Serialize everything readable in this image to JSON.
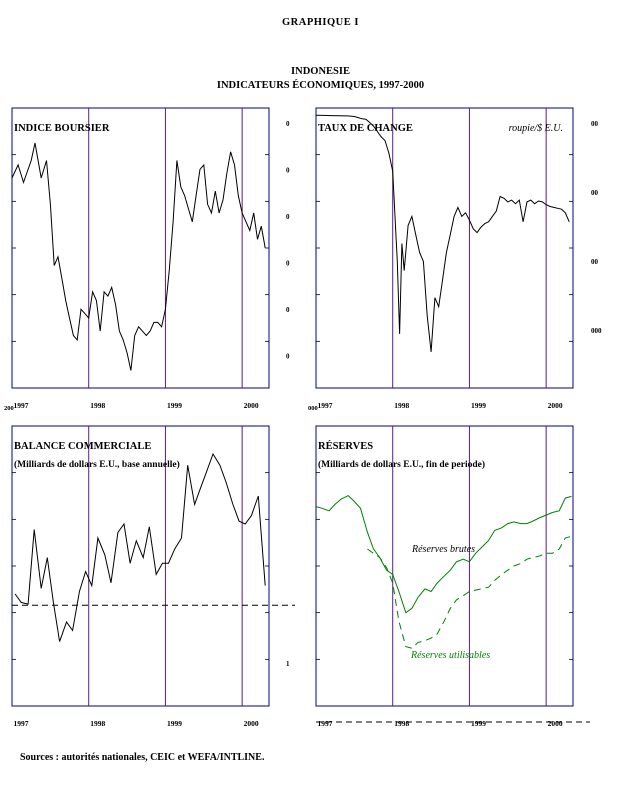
{
  "figure_label": "GRAPHIQUE I",
  "country": "INDONESIE",
  "subtitle": "INDICATEURS ÉCONOMIQUES, 1997-2000",
  "sources": "Sources : autorités nationales, CEIC et WEFA/INTLINE.",
  "colors": {
    "series": "#000000",
    "gross": "#008000",
    "usable": "#008000",
    "year_marker": "#5a1a82",
    "frame": "#00008b"
  },
  "chart_data": [
    {
      "id": "stock",
      "type": "line",
      "title": "INDICE BOURSIER",
      "subtitle": "",
      "unit_note": "",
      "x_tick_labels": [
        "1997",
        "1998",
        "1999",
        "2000"
      ],
      "year_markers_at": [
        1998.0,
        1999.0,
        2000.0
      ],
      "xlim": [
        1997.0,
        2000.35
      ],
      "right_tick_labels": [
        "0",
        "0",
        "0",
        "0",
        "0",
        "0"
      ],
      "left_corner_label": "200",
      "grid": false,
      "series": [
        {
          "x": [
            1997.0,
            1997.08,
            1997.15,
            1997.25,
            1997.3,
            1997.38,
            1997.45,
            1997.5,
            1997.55,
            1997.6,
            1997.65,
            1997.7,
            1997.75,
            1997.8,
            1997.85,
            1997.9,
            1997.95,
            1998.0,
            1998.05,
            1998.1,
            1998.15,
            1998.2,
            1998.25,
            1998.3,
            1998.35,
            1998.4,
            1998.45,
            1998.5,
            1998.55,
            1998.6,
            1998.65,
            1998.7,
            1998.75,
            1998.8,
            1998.85,
            1998.9,
            1998.95,
            1999.0,
            1999.05,
            1999.1,
            1999.15,
            1999.2,
            1999.25,
            1999.3,
            1999.35,
            1999.4,
            1999.45,
            1999.5,
            1999.55,
            1999.6,
            1999.65,
            1999.7,
            1999.75,
            1999.8,
            1999.85,
            1999.9,
            1999.95,
            2000.0,
            2000.05,
            2000.1,
            2000.15,
            2000.2,
            2000.25,
            2000.3
          ],
          "y": [
            660,
            690,
            650,
            700,
            740,
            660,
            700,
            600,
            460,
            480,
            430,
            380,
            340,
            300,
            290,
            360,
            350,
            340,
            400,
            380,
            310,
            400,
            390,
            410,
            370,
            310,
            290,
            260,
            220,
            300,
            320,
            310,
            300,
            310,
            330,
            330,
            320,
            360,
            450,
            560,
            700,
            640,
            620,
            590,
            560,
            620,
            680,
            690,
            600,
            580,
            630,
            580,
            610,
            670,
            720,
            690,
            620,
            580,
            560,
            540,
            580,
            520,
            550,
            500
          ]
        }
      ]
    },
    {
      "id": "fx",
      "type": "line",
      "title": "TAUX DE CHANGE",
      "subtitle": "",
      "unit_note": "roupie/$ E.U.",
      "x_tick_labels": [
        "1997",
        "1998",
        "1999",
        "2000"
      ],
      "year_markers_at": [
        1998.0,
        1999.0,
        2000.0
      ],
      "xlim": [
        1997.0,
        2000.35
      ],
      "right_tick_labels": [
        "00",
        "00",
        "00",
        "000"
      ],
      "left_corner_label": "000",
      "grid": false,
      "series": [
        {
          "x": [
            1997.0,
            1997.1,
            1997.2,
            1997.3,
            1997.4,
            1997.45,
            1997.5,
            1997.55,
            1997.6,
            1997.65,
            1997.7,
            1997.75,
            1997.8,
            1997.85,
            1997.9,
            1997.95,
            1998.0,
            1998.03,
            1998.06,
            1998.09,
            1998.12,
            1998.15,
            1998.2,
            1998.25,
            1998.3,
            1998.35,
            1998.4,
            1998.45,
            1998.5,
            1998.55,
            1998.6,
            1998.65,
            1998.7,
            1998.75,
            1998.8,
            1998.85,
            1998.9,
            1998.95,
            1999.0,
            1999.05,
            1999.1,
            1999.15,
            1999.2,
            1999.25,
            1999.3,
            1999.35,
            1999.4,
            1999.45,
            1999.5,
            1999.55,
            1999.6,
            1999.65,
            1999.7,
            1999.75,
            1999.8,
            1999.85,
            1999.9,
            1999.95,
            2000.0,
            2000.05,
            2000.1,
            2000.15,
            2000.2,
            2000.25,
            2000.3
          ],
          "y": [
            2400,
            2410,
            2420,
            2430,
            2440,
            2450,
            2470,
            2530,
            2600,
            2620,
            2800,
            3000,
            3300,
            3600,
            3800,
            4500,
            5500,
            8000,
            10500,
            14500,
            9500,
            11000,
            8500,
            8000,
            9000,
            10000,
            10500,
            13500,
            15500,
            12500,
            13000,
            11500,
            10000,
            9000,
            8000,
            7500,
            8000,
            7800,
            8200,
            8700,
            8900,
            8600,
            8400,
            8300,
            8000,
            7700,
            6900,
            7000,
            7200,
            7100,
            7300,
            7100,
            8300,
            7200,
            7100,
            7300,
            7150,
            7200,
            7350,
            7450,
            7500,
            7550,
            7600,
            7800,
            8300
          ]
        }
      ]
    },
    {
      "id": "trade",
      "type": "line",
      "title": "BALANCE COMMERCIALE",
      "subtitle": "(Milliards de dollars E.U., base annuelle)",
      "unit_note": "",
      "x_tick_labels": [
        "1997",
        "1998",
        "1999",
        "2000"
      ],
      "year_markers_at": [
        1998.0,
        1999.0,
        2000.0
      ],
      "xlim": [
        1997.0,
        2000.35
      ],
      "right_tick_labels": [
        "1"
      ],
      "left_corner_label": "",
      "grid": false,
      "zero_line": true,
      "series": [
        {
          "x": [
            1997.04,
            1997.12,
            1997.21,
            1997.29,
            1997.38,
            1997.46,
            1997.54,
            1997.62,
            1997.71,
            1997.79,
            1997.88,
            1997.96,
            1998.04,
            1998.12,
            1998.21,
            1998.29,
            1998.38,
            1998.46,
            1998.54,
            1998.62,
            1998.71,
            1998.79,
            1998.88,
            1998.96,
            1999.04,
            1999.12,
            1999.21,
            1999.29,
            1999.38,
            1999.46,
            1999.54,
            1999.62,
            1999.71,
            1999.79,
            1999.88,
            1999.96,
            2000.04,
            2000.12,
            2000.21,
            2000.3
          ],
          "y": [
            2.0,
            0.5,
            0.2,
            13.5,
            3.0,
            8.5,
            0.5,
            -6.5,
            -3.0,
            -4.5,
            2.5,
            6.0,
            3.5,
            12.0,
            9.0,
            4.0,
            13.0,
            14.5,
            7.5,
            11.5,
            8.5,
            14.0,
            5.5,
            7.5,
            7.5,
            10.0,
            12.0,
            25.0,
            18.0,
            21.0,
            24.0,
            27.0,
            25.0,
            22.0,
            18.0,
            15.0,
            14.5,
            16.0,
            19.5,
            3.5
          ]
        }
      ]
    },
    {
      "id": "reserves",
      "type": "line",
      "title": "RÉSERVES",
      "subtitle": "(Milliards de dollars E.U., fin de periode)",
      "unit_note": "",
      "x_tick_labels": [
        "1997",
        "1998",
        "1999",
        "2000"
      ],
      "year_markers_at": [
        1998.0,
        1999.0,
        2000.0
      ],
      "xlim": [
        1997.0,
        2000.35
      ],
      "right_tick_labels": [],
      "left_corner_label": "",
      "grid": false,
      "series": [
        {
          "name": "Réserves brutes",
          "x": [
            1997.0,
            1997.08,
            1997.17,
            1997.25,
            1997.33,
            1997.42,
            1997.5,
            1997.58,
            1997.67,
            1997.75,
            1997.83,
            1997.92,
            1998.0,
            1998.08,
            1998.17,
            1998.25,
            1998.33,
            1998.42,
            1998.5,
            1998.58,
            1998.67,
            1998.75,
            1998.83,
            1998.92,
            1999.0,
            1999.08,
            1999.17,
            1999.25,
            1999.33,
            1999.42,
            1999.5,
            1999.58,
            1999.67,
            1999.75,
            1999.83,
            1999.92,
            2000.0,
            2000.08,
            2000.17,
            2000.25,
            2000.33
          ],
          "y": [
            28.5,
            28.3,
            28.0,
            28.8,
            29.4,
            29.8,
            29.1,
            28.3,
            25.5,
            23.5,
            22.5,
            21.0,
            20.5,
            18.5,
            16.0,
            16.5,
            17.8,
            18.8,
            18.5,
            19.5,
            20.3,
            21.0,
            22.0,
            22.3,
            22.0,
            23.0,
            23.8,
            24.5,
            25.7,
            26.0,
            26.5,
            26.7,
            26.5,
            26.5,
            26.8,
            27.2,
            27.5,
            27.8,
            28.0,
            29.5,
            29.7
          ]
        },
        {
          "name": "Réserves utilisables",
          "x": [
            1997.67,
            1997.75,
            1997.83,
            1997.92,
            1998.0,
            1998.08,
            1998.17,
            1998.25,
            1998.33,
            1998.42,
            1998.5,
            1998.58,
            1998.67,
            1998.75,
            1998.83,
            1998.92,
            1999.0,
            1999.25,
            1999.33,
            1999.42,
            1999.5,
            1999.58,
            1999.67,
            1999.75,
            1999.83,
            1999.92,
            2000.0,
            2000.08,
            2000.17,
            2000.25,
            2000.33
          ],
          "y": [
            23.5,
            23.0,
            22.5,
            21.3,
            19.5,
            15.0,
            12.0,
            11.8,
            12.5,
            12.7,
            13.0,
            13.5,
            15.0,
            16.5,
            17.5,
            18.0,
            18.5,
            19.0,
            19.8,
            20.5,
            21.0,
            21.5,
            21.8,
            22.3,
            22.5,
            22.7,
            23.0,
            23.0,
            23.5,
            24.8,
            25.0
          ]
        }
      ]
    }
  ]
}
